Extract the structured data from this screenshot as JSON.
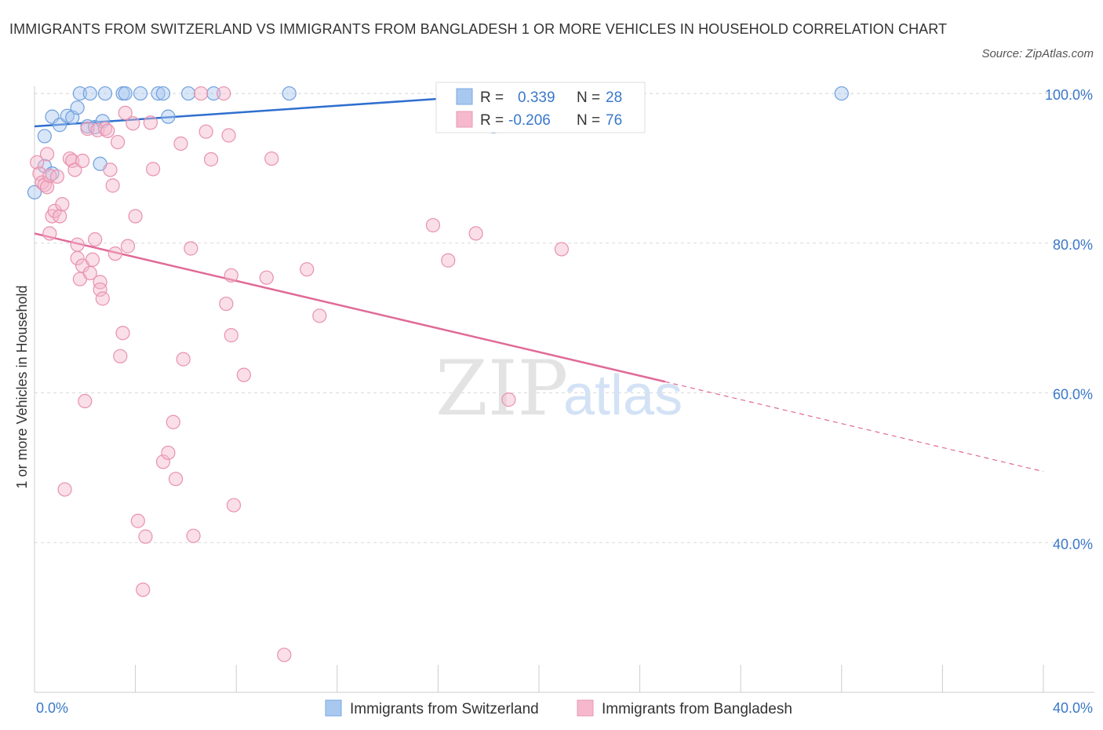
{
  "title": "IMMIGRANTS FROM SWITZERLAND VS IMMIGRANTS FROM BANGLADESH 1 OR MORE VEHICLES IN HOUSEHOLD CORRELATION CHART",
  "source": "Source: ZipAtlas.com",
  "watermark": {
    "zip": "ZIP",
    "atlas": "atlas"
  },
  "colors": {
    "blue_fill": "#a8c8f0",
    "blue_line": "#2f6fcf",
    "pink_fill": "#f5b8cc",
    "pink_line": "#e06a97",
    "tick_text": "#3a78c9",
    "grid": "#d9d9d9"
  },
  "legend": {
    "r_label": "R =",
    "n_label": "N =",
    "rows": [
      {
        "r": "0.339",
        "n": "28"
      },
      {
        "r": "-0.206",
        "n": "76"
      }
    ]
  },
  "chart_data": {
    "type": "scatter",
    "xlabel": "",
    "ylabel": "1 or more Vehicles in Household",
    "xlim": [
      0,
      40
    ],
    "ylim": [
      20,
      102
    ],
    "x_tick_labels": [
      "0.0%",
      "40.0%"
    ],
    "y_ticks": [
      40,
      60,
      80,
      100
    ],
    "y_tick_labels": [
      "40.0%",
      "60.0%",
      "80.0%",
      "100.0%"
    ],
    "grid": true,
    "legend_position": "top-center",
    "series": [
      {
        "name": "Immigrants from Switzerland",
        "color": "#a8c8f0",
        "trend": {
          "x0": 0,
          "y0": 95.6,
          "x1": 20,
          "y1": 100.2
        },
        "points": [
          [
            0.0,
            86.8
          ],
          [
            0.4,
            90.3
          ],
          [
            0.7,
            89.3
          ],
          [
            0.4,
            94.3
          ],
          [
            0.7,
            96.9
          ],
          [
            1.0,
            95.8
          ],
          [
            1.3,
            97.0
          ],
          [
            1.5,
            96.8
          ],
          [
            1.7,
            98.1
          ],
          [
            1.8,
            100
          ],
          [
            2.2,
            100
          ],
          [
            2.1,
            95.6
          ],
          [
            2.4,
            95.5
          ],
          [
            2.6,
            90.6
          ],
          [
            2.7,
            96.3
          ],
          [
            2.8,
            100
          ],
          [
            3.5,
            100
          ],
          [
            3.6,
            100
          ],
          [
            4.2,
            100
          ],
          [
            4.9,
            100
          ],
          [
            5.1,
            100
          ],
          [
            5.3,
            96.9
          ],
          [
            6.1,
            100
          ],
          [
            7.1,
            100
          ],
          [
            10.1,
            100
          ],
          [
            17.6,
            100
          ],
          [
            18.2,
            95.6
          ],
          [
            32.0,
            100
          ]
        ]
      },
      {
        "name": "Immigrants from Bangladesh",
        "color": "#f5b8cc",
        "trend": {
          "x0": 0,
          "y0": 81.3,
          "x1": 25,
          "y1": 61.5,
          "dash_to_x": 40,
          "dash_to_y": 49.5
        },
        "points": [
          [
            0.1,
            90.8
          ],
          [
            0.2,
            89.3
          ],
          [
            0.3,
            88.1
          ],
          [
            0.4,
            87.8
          ],
          [
            0.5,
            87.5
          ],
          [
            0.5,
            91.9
          ],
          [
            0.6,
            89.0
          ],
          [
            0.6,
            81.3
          ],
          [
            0.7,
            83.6
          ],
          [
            0.8,
            84.3
          ],
          [
            0.9,
            88.9
          ],
          [
            1.0,
            83.6
          ],
          [
            1.1,
            85.2
          ],
          [
            1.2,
            47.1
          ],
          [
            1.4,
            91.3
          ],
          [
            1.5,
            91.0
          ],
          [
            1.6,
            89.8
          ],
          [
            1.7,
            78.0
          ],
          [
            1.7,
            79.8
          ],
          [
            1.8,
            75.2
          ],
          [
            1.9,
            77.0
          ],
          [
            1.9,
            91.0
          ],
          [
            2.0,
            58.9
          ],
          [
            2.1,
            95.3
          ],
          [
            2.2,
            76.0
          ],
          [
            2.3,
            77.8
          ],
          [
            2.4,
            80.5
          ],
          [
            2.5,
            95.1
          ],
          [
            2.6,
            74.8
          ],
          [
            2.6,
            73.8
          ],
          [
            2.7,
            72.6
          ],
          [
            2.8,
            95.3
          ],
          [
            2.9,
            95.0
          ],
          [
            3.0,
            89.8
          ],
          [
            3.1,
            87.7
          ],
          [
            3.2,
            78.6
          ],
          [
            3.3,
            93.5
          ],
          [
            3.4,
            64.9
          ],
          [
            3.5,
            68.0
          ],
          [
            3.6,
            97.4
          ],
          [
            3.7,
            79.6
          ],
          [
            3.9,
            96.0
          ],
          [
            4.0,
            83.6
          ],
          [
            4.1,
            42.9
          ],
          [
            4.3,
            33.7
          ],
          [
            4.4,
            40.8
          ],
          [
            4.6,
            96.1
          ],
          [
            4.7,
            89.9
          ],
          [
            5.1,
            50.8
          ],
          [
            5.3,
            52.0
          ],
          [
            5.5,
            56.1
          ],
          [
            5.6,
            48.5
          ],
          [
            5.9,
            64.5
          ],
          [
            5.8,
            93.3
          ],
          [
            6.2,
            79.3
          ],
          [
            6.3,
            40.9
          ],
          [
            6.6,
            100
          ],
          [
            6.8,
            94.9
          ],
          [
            7.0,
            91.2
          ],
          [
            7.5,
            100
          ],
          [
            7.6,
            71.9
          ],
          [
            7.7,
            94.4
          ],
          [
            7.8,
            67.7
          ],
          [
            7.8,
            75.7
          ],
          [
            7.9,
            45.0
          ],
          [
            8.3,
            62.4
          ],
          [
            9.2,
            75.4
          ],
          [
            9.4,
            91.3
          ],
          [
            9.9,
            25.0
          ],
          [
            10.8,
            76.5
          ],
          [
            11.3,
            70.3
          ],
          [
            15.8,
            82.4
          ],
          [
            16.4,
            77.7
          ],
          [
            17.5,
            81.3
          ],
          [
            18.8,
            59.1
          ],
          [
            20.9,
            79.2
          ]
        ]
      }
    ]
  },
  "bottom_legend": [
    {
      "label": "Immigrants from Switzerland"
    },
    {
      "label": "Immigrants from Bangladesh"
    }
  ]
}
